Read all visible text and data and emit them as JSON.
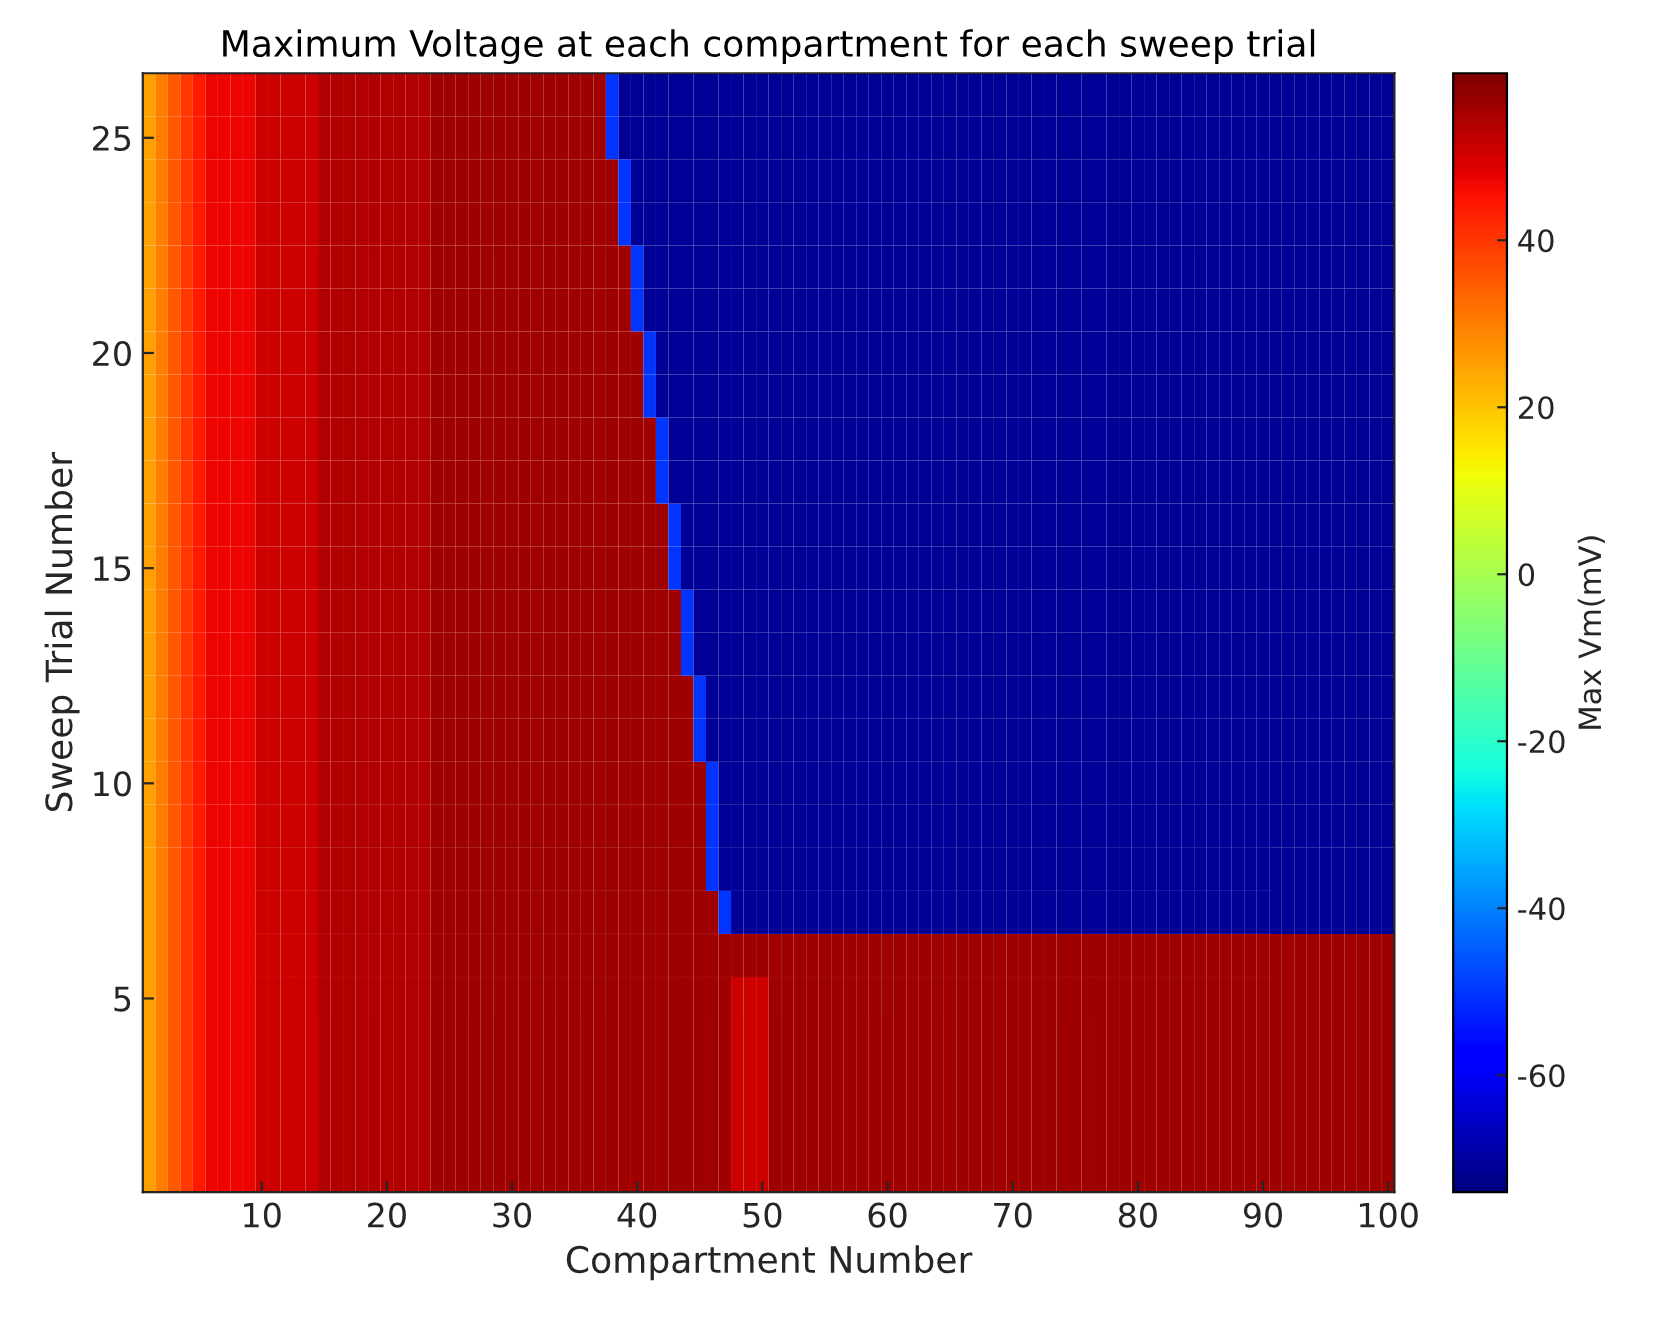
{
  "chart_data": {
    "type": "heatmap",
    "title": "Maximum Voltage at each compartment for each sweep trial",
    "xlabel": "Compartment Number",
    "ylabel": "Sweep Trial Number",
    "clabel": "Max Vm(mV)",
    "categories": [
      null,
      null,
      null,
      null,
      null,
      null,
      null,
      null,
      null,
      "10",
      null,
      null,
      null,
      null,
      null,
      null,
      null,
      null,
      null,
      "20",
      null,
      null,
      null,
      null,
      null,
      null,
      null,
      null,
      null,
      "30",
      null,
      null,
      null,
      null,
      null,
      null,
      null,
      null,
      null,
      "40",
      null,
      null,
      null,
      null,
      null,
      null,
      null,
      null,
      null,
      "50",
      null,
      null,
      null,
      null,
      null,
      null,
      null,
      null,
      null,
      "60",
      null,
      null,
      null,
      null,
      null,
      null,
      null,
      null,
      null,
      "70",
      null,
      null,
      null,
      null,
      null,
      null,
      null,
      null,
      null,
      "80",
      null,
      null,
      null,
      null,
      null,
      null,
      null,
      null,
      null,
      "90",
      null,
      null,
      null,
      null,
      null,
      null,
      null,
      null,
      null,
      "100"
    ],
    "y_categories": [
      null,
      "25",
      null,
      null,
      null,
      null,
      "20",
      null,
      null,
      null,
      null,
      "15",
      null,
      null,
      null,
      null,
      "10",
      null,
      null,
      null,
      null,
      "5",
      null,
      null,
      null,
      null
    ],
    "clim": [
      -74,
      60
    ],
    "cticks": [
      -60,
      -40,
      -20,
      0,
      20,
      40
    ],
    "grid": false,
    "cells": [
      [
        25,
        30,
        35,
        40,
        44,
        47,
        47,
        47,
        47,
        51,
        51,
        51,
        51,
        51,
        54,
        54,
        54,
        54,
        54,
        54,
        54,
        54,
        54,
        56,
        56,
        56,
        56,
        56,
        56,
        56,
        56,
        56,
        56,
        56,
        56,
        56,
        56,
        -50,
        -71,
        -71,
        -71,
        -71,
        -71,
        -71,
        -71,
        -71,
        -71,
        -71,
        -71,
        -71,
        -71,
        -71,
        -71,
        -71,
        -71,
        -71,
        -71,
        -71,
        -71,
        -71,
        -71,
        -71,
        -71,
        -71,
        -71,
        -71,
        -71,
        -71,
        -71,
        -71,
        -71,
        -71,
        -71,
        -71,
        -71,
        -71,
        -71,
        -71,
        -71,
        -71,
        -71,
        -71,
        -71,
        -71,
        -71,
        -71,
        -71,
        -71,
        -71,
        -71,
        -71,
        -71,
        -71,
        -71,
        -71,
        -71,
        -71,
        -71,
        -71,
        -71
      ],
      [
        25,
        30,
        35,
        40,
        44,
        47,
        47,
        47,
        47,
        51,
        51,
        51,
        51,
        51,
        54,
        54,
        54,
        54,
        54,
        54,
        54,
        54,
        54,
        56,
        56,
        56,
        56,
        56,
        56,
        56,
        56,
        56,
        56,
        56,
        56,
        56,
        56,
        -50,
        -71,
        -71,
        -71,
        -71,
        -71,
        -71,
        -71,
        -71,
        -71,
        -71,
        -71,
        -71,
        -71,
        -71,
        -71,
        -71,
        -71,
        -71,
        -71,
        -71,
        -71,
        -71,
        -71,
        -71,
        -71,
        -71,
        -71,
        -71,
        -71,
        -71,
        -71,
        -71,
        -71,
        -71,
        -71,
        -71,
        -71,
        -71,
        -71,
        -71,
        -71,
        -71,
        -71,
        -71,
        -71,
        -71,
        -71,
        -71,
        -71,
        -71,
        -71,
        -71,
        -71,
        -71,
        -71,
        -71,
        -71,
        -71,
        -71,
        -71,
        -71,
        -71
      ],
      [
        25,
        30,
        35,
        40,
        44,
        47,
        47,
        47,
        47,
        51,
        51,
        51,
        51,
        51,
        54,
        54,
        54,
        54,
        54,
        54,
        54,
        54,
        54,
        56,
        56,
        56,
        56,
        56,
        56,
        56,
        56,
        56,
        56,
        56,
        56,
        56,
        56,
        56,
        -50,
        -71,
        -71,
        -71,
        -71,
        -71,
        -71,
        -71,
        -71,
        -71,
        -71,
        -71,
        -71,
        -71,
        -71,
        -71,
        -71,
        -71,
        -71,
        -71,
        -71,
        -71,
        -71,
        -71,
        -71,
        -71,
        -71,
        -71,
        -71,
        -71,
        -71,
        -71,
        -71,
        -71,
        -71,
        -71,
        -71,
        -71,
        -71,
        -71,
        -71,
        -71,
        -71,
        -71,
        -71,
        -71,
        -71,
        -71,
        -71,
        -71,
        -71,
        -71,
        -71,
        -71,
        -71,
        -71,
        -71,
        -71,
        -71,
        -71,
        -71,
        -71
      ],
      [
        25,
        30,
        35,
        40,
        44,
        47,
        47,
        47,
        47,
        51,
        51,
        51,
        51,
        51,
        54,
        54,
        54,
        54,
        54,
        54,
        54,
        54,
        54,
        56,
        56,
        56,
        56,
        56,
        56,
        56,
        56,
        56,
        56,
        56,
        56,
        56,
        56,
        56,
        -50,
        -71,
        -71,
        -71,
        -71,
        -71,
        -71,
        -71,
        -71,
        -71,
        -71,
        -71,
        -71,
        -71,
        -71,
        -71,
        -71,
        -71,
        -71,
        -71,
        -71,
        -71,
        -71,
        -71,
        -71,
        -71,
        -71,
        -71,
        -71,
        -71,
        -71,
        -71,
        -71,
        -71,
        -71,
        -71,
        -71,
        -71,
        -71,
        -71,
        -71,
        -71,
        -71,
        -71,
        -71,
        -71,
        -71,
        -71,
        -71,
        -71,
        -71,
        -71,
        -71,
        -71,
        -71,
        -71,
        -71,
        -71,
        -71,
        -71,
        -71,
        -71
      ],
      [
        25,
        30,
        35,
        40,
        44,
        47,
        47,
        47,
        47,
        51,
        51,
        51,
        51,
        51,
        54,
        54,
        54,
        54,
        54,
        54,
        54,
        54,
        54,
        56,
        56,
        56,
        56,
        56,
        56,
        56,
        56,
        56,
        56,
        56,
        56,
        56,
        56,
        56,
        56,
        -50,
        -71,
        -71,
        -71,
        -71,
        -71,
        -71,
        -71,
        -71,
        -71,
        -71,
        -71,
        -71,
        -71,
        -71,
        -71,
        -71,
        -71,
        -71,
        -71,
        -71,
        -71,
        -71,
        -71,
        -71,
        -71,
        -71,
        -71,
        -71,
        -71,
        -71,
        -71,
        -71,
        -71,
        -71,
        -71,
        -71,
        -71,
        -71,
        -71,
        -71,
        -71,
        -71,
        -71,
        -71,
        -71,
        -71,
        -71,
        -71,
        -71,
        -71,
        -71,
        -71,
        -71,
        -71,
        -71,
        -71,
        -71,
        -71,
        -71,
        -71
      ],
      [
        25,
        30,
        35,
        40,
        44,
        47,
        47,
        47,
        47,
        51,
        51,
        51,
        51,
        51,
        54,
        54,
        54,
        54,
        54,
        54,
        54,
        54,
        54,
        56,
        56,
        56,
        56,
        56,
        56,
        56,
        56,
        56,
        56,
        56,
        56,
        56,
        56,
        56,
        56,
        -50,
        -71,
        -71,
        -71,
        -71,
        -71,
        -71,
        -71,
        -71,
        -71,
        -71,
        -71,
        -71,
        -71,
        -71,
        -71,
        -71,
        -71,
        -71,
        -71,
        -71,
        -71,
        -71,
        -71,
        -71,
        -71,
        -71,
        -71,
        -71,
        -71,
        -71,
        -71,
        -71,
        -71,
        -71,
        -71,
        -71,
        -71,
        -71,
        -71,
        -71,
        -71,
        -71,
        -71,
        -71,
        -71,
        -71,
        -71,
        -71,
        -71,
        -71,
        -71,
        -71,
        -71,
        -71,
        -71,
        -71,
        -71,
        -71,
        -71,
        -71
      ],
      [
        25,
        30,
        35,
        40,
        44,
        47,
        47,
        47,
        47,
        51,
        51,
        51,
        51,
        51,
        54,
        54,
        54,
        54,
        54,
        54,
        54,
        54,
        54,
        56,
        56,
        56,
        56,
        56,
        56,
        56,
        56,
        56,
        56,
        56,
        56,
        56,
        56,
        56,
        56,
        56,
        -50,
        -71,
        -71,
        -71,
        -71,
        -71,
        -71,
        -71,
        -71,
        -71,
        -71,
        -71,
        -71,
        -71,
        -71,
        -71,
        -71,
        -71,
        -71,
        -71,
        -71,
        -71,
        -71,
        -71,
        -71,
        -71,
        -71,
        -71,
        -71,
        -71,
        -71,
        -71,
        -71,
        -71,
        -71,
        -71,
        -71,
        -71,
        -71,
        -71,
        -71,
        -71,
        -71,
        -71,
        -71,
        -71,
        -71,
        -71,
        -71,
        -71,
        -71,
        -71,
        -71,
        -71,
        -71,
        -71,
        -71,
        -71,
        -71,
        -71
      ],
      [
        25,
        30,
        35,
        40,
        44,
        47,
        47,
        47,
        47,
        51,
        51,
        51,
        51,
        51,
        54,
        54,
        54,
        54,
        54,
        54,
        54,
        54,
        54,
        56,
        56,
        56,
        56,
        56,
        56,
        56,
        56,
        56,
        56,
        56,
        56,
        56,
        56,
        56,
        56,
        56,
        -50,
        -71,
        -71,
        -71,
        -71,
        -71,
        -71,
        -71,
        -71,
        -71,
        -71,
        -71,
        -71,
        -71,
        -71,
        -71,
        -71,
        -71,
        -71,
        -71,
        -71,
        -71,
        -71,
        -71,
        -71,
        -71,
        -71,
        -71,
        -71,
        -71,
        -71,
        -71,
        -71,
        -71,
        -71,
        -71,
        -71,
        -71,
        -71,
        -71,
        -71,
        -71,
        -71,
        -71,
        -71,
        -71,
        -71,
        -71,
        -71,
        -71,
        -71,
        -71,
        -71,
        -71,
        -71,
        -71,
        -71,
        -71,
        -71,
        -71
      ],
      [
        25,
        30,
        35,
        40,
        44,
        47,
        47,
        47,
        47,
        51,
        51,
        51,
        51,
        51,
        54,
        54,
        54,
        54,
        54,
        54,
        54,
        54,
        54,
        56,
        56,
        56,
        56,
        56,
        56,
        56,
        56,
        56,
        56,
        56,
        56,
        56,
        56,
        56,
        56,
        56,
        56,
        -50,
        -71,
        -71,
        -71,
        -71,
        -71,
        -71,
        -71,
        -71,
        -71,
        -71,
        -71,
        -71,
        -71,
        -71,
        -71,
        -71,
        -71,
        -71,
        -71,
        -71,
        -71,
        -71,
        -71,
        -71,
        -71,
        -71,
        -71,
        -71,
        -71,
        -71,
        -71,
        -71,
        -71,
        -71,
        -71,
        -71,
        -71,
        -71,
        -71,
        -71,
        -71,
        -71,
        -71,
        -71,
        -71,
        -71,
        -71,
        -71,
        -71,
        -71,
        -71,
        -71,
        -71,
        -71,
        -71,
        -71,
        -71,
        -71
      ],
      [
        25,
        30,
        35,
        40,
        44,
        47,
        47,
        47,
        47,
        51,
        51,
        51,
        51,
        51,
        54,
        54,
        54,
        54,
        54,
        54,
        54,
        54,
        54,
        56,
        56,
        56,
        56,
        56,
        56,
        56,
        56,
        56,
        56,
        56,
        56,
        56,
        56,
        56,
        56,
        56,
        56,
        -50,
        -71,
        -71,
        -71,
        -71,
        -71,
        -71,
        -71,
        -71,
        -71,
        -71,
        -71,
        -71,
        -71,
        -71,
        -71,
        -71,
        -71,
        -71,
        -71,
        -71,
        -71,
        -71,
        -71,
        -71,
        -71,
        -71,
        -71,
        -71,
        -71,
        -71,
        -71,
        -71,
        -71,
        -71,
        -71,
        -71,
        -71,
        -71,
        -71,
        -71,
        -71,
        -71,
        -71,
        -71,
        -71,
        -71,
        -71,
        -71,
        -71,
        -71,
        -71,
        -71,
        -71,
        -71,
        -71,
        -71,
        -71,
        -71
      ],
      [
        25,
        30,
        35,
        40,
        44,
        47,
        47,
        47,
        47,
        51,
        51,
        51,
        51,
        51,
        54,
        54,
        54,
        54,
        54,
        54,
        54,
        54,
        54,
        56,
        56,
        56,
        56,
        56,
        56,
        56,
        56,
        56,
        56,
        56,
        56,
        56,
        56,
        56,
        56,
        56,
        56,
        56,
        -50,
        -71,
        -71,
        -71,
        -71,
        -71,
        -71,
        -71,
        -71,
        -71,
        -71,
        -71,
        -71,
        -71,
        -71,
        -71,
        -71,
        -71,
        -71,
        -71,
        -71,
        -71,
        -71,
        -71,
        -71,
        -71,
        -71,
        -71,
        -71,
        -71,
        -71,
        -71,
        -71,
        -71,
        -71,
        -71,
        -71,
        -71,
        -71,
        -71,
        -71,
        -71,
        -71,
        -71,
        -71,
        -71,
        -71,
        -71,
        -71,
        -71,
        -71,
        -71,
        -71,
        -71,
        -71,
        -71,
        -71,
        -71
      ],
      [
        25,
        30,
        35,
        40,
        44,
        47,
        47,
        47,
        47,
        51,
        51,
        51,
        51,
        51,
        54,
        54,
        54,
        54,
        54,
        54,
        54,
        54,
        54,
        56,
        56,
        56,
        56,
        56,
        56,
        56,
        56,
        56,
        56,
        56,
        56,
        56,
        56,
        56,
        56,
        56,
        56,
        56,
        -50,
        -71,
        -71,
        -71,
        -71,
        -71,
        -71,
        -71,
        -71,
        -71,
        -71,
        -71,
        -71,
        -71,
        -71,
        -71,
        -71,
        -71,
        -71,
        -71,
        -71,
        -71,
        -71,
        -71,
        -71,
        -71,
        -71,
        -71,
        -71,
        -71,
        -71,
        -71,
        -71,
        -71,
        -71,
        -71,
        -71,
        -71,
        -71,
        -71,
        -71,
        -71,
        -71,
        -71,
        -71,
        -71,
        -71,
        -71,
        -71,
        -71,
        -71,
        -71,
        -71,
        -71,
        -71,
        -71,
        -71,
        -71
      ],
      [
        25,
        30,
        35,
        40,
        44,
        47,
        47,
        47,
        47,
        51,
        51,
        51,
        51,
        51,
        54,
        54,
        54,
        54,
        54,
        54,
        54,
        54,
        54,
        56,
        56,
        56,
        56,
        56,
        56,
        56,
        56,
        56,
        56,
        56,
        56,
        56,
        56,
        56,
        56,
        56,
        56,
        56,
        56,
        -50,
        -71,
        -71,
        -71,
        -71,
        -71,
        -71,
        -71,
        -71,
        -71,
        -71,
        -71,
        -71,
        -71,
        -71,
        -71,
        -71,
        -71,
        -71,
        -71,
        -71,
        -71,
        -71,
        -71,
        -71,
        -71,
        -71,
        -71,
        -71,
        -71,
        -71,
        -71,
        -71,
        -71,
        -71,
        -71,
        -71,
        -71,
        -71,
        -71,
        -71,
        -71,
        -71,
        -71,
        -71,
        -71,
        -71,
        -71,
        -71,
        -71,
        -71,
        -71,
        -71,
        -71,
        -71,
        -71,
        -71
      ],
      [
        25,
        30,
        35,
        40,
        44,
        47,
        47,
        47,
        47,
        51,
        51,
        51,
        51,
        51,
        54,
        54,
        54,
        54,
        54,
        54,
        54,
        54,
        54,
        56,
        56,
        56,
        56,
        56,
        56,
        56,
        56,
        56,
        56,
        56,
        56,
        56,
        56,
        56,
        56,
        56,
        56,
        56,
        56,
        -50,
        -71,
        -71,
        -71,
        -71,
        -71,
        -71,
        -71,
        -71,
        -71,
        -71,
        -71,
        -71,
        -71,
        -71,
        -71,
        -71,
        -71,
        -71,
        -71,
        -71,
        -71,
        -71,
        -71,
        -71,
        -71,
        -71,
        -71,
        -71,
        -71,
        -71,
        -71,
        -71,
        -71,
        -71,
        -71,
        -71,
        -71,
        -71,
        -71,
        -71,
        -71,
        -71,
        -71,
        -71,
        -71,
        -71,
        -71,
        -71,
        -71,
        -71,
        -71,
        -71,
        -71,
        -71,
        -71,
        -71
      ],
      [
        25,
        30,
        35,
        40,
        44,
        47,
        47,
        47,
        47,
        51,
        51,
        51,
        51,
        51,
        54,
        54,
        54,
        54,
        54,
        54,
        54,
        54,
        54,
        56,
        56,
        56,
        56,
        56,
        56,
        56,
        56,
        56,
        56,
        56,
        56,
        56,
        56,
        56,
        56,
        56,
        56,
        56,
        56,
        56,
        -50,
        -71,
        -71,
        -71,
        -71,
        -71,
        -71,
        -71,
        -71,
        -71,
        -71,
        -71,
        -71,
        -71,
        -71,
        -71,
        -71,
        -71,
        -71,
        -71,
        -71,
        -71,
        -71,
        -71,
        -71,
        -71,
        -71,
        -71,
        -71,
        -71,
        -71,
        -71,
        -71,
        -71,
        -71,
        -71,
        -71,
        -71,
        -71,
        -71,
        -71,
        -71,
        -71,
        -71,
        -71,
        -71,
        -71,
        -71,
        -71,
        -71,
        -71,
        -71,
        -71,
        -71,
        -71,
        -71
      ],
      [
        25,
        30,
        35,
        40,
        44,
        47,
        47,
        47,
        47,
        51,
        51,
        51,
        51,
        51,
        54,
        54,
        54,
        54,
        54,
        54,
        54,
        54,
        54,
        56,
        56,
        56,
        56,
        56,
        56,
        56,
        56,
        56,
        56,
        56,
        56,
        56,
        56,
        56,
        56,
        56,
        56,
        56,
        56,
        56,
        -50,
        -71,
        -71,
        -71,
        -71,
        -71,
        -71,
        -71,
        -71,
        -71,
        -71,
        -71,
        -71,
        -71,
        -71,
        -71,
        -71,
        -71,
        -71,
        -71,
        -71,
        -71,
        -71,
        -71,
        -71,
        -71,
        -71,
        -71,
        -71,
        -71,
        -71,
        -71,
        -71,
        -71,
        -71,
        -71,
        -71,
        -71,
        -71,
        -71,
        -71,
        -71,
        -71,
        -71,
        -71,
        -71,
        -71,
        -71,
        -71,
        -71,
        -71,
        -71,
        -71,
        -71,
        -71,
        -71
      ],
      [
        25,
        30,
        35,
        40,
        44,
        47,
        47,
        47,
        47,
        51,
        51,
        51,
        51,
        51,
        54,
        54,
        54,
        54,
        54,
        54,
        54,
        54,
        54,
        56,
        56,
        56,
        56,
        56,
        56,
        56,
        56,
        56,
        56,
        56,
        56,
        56,
        56,
        56,
        56,
        56,
        56,
        56,
        56,
        56,
        56,
        -50,
        -71,
        -71,
        -71,
        -71,
        -71,
        -71,
        -71,
        -71,
        -71,
        -71,
        -71,
        -71,
        -71,
        -71,
        -71,
        -71,
        -71,
        -71,
        -71,
        -71,
        -71,
        -71,
        -71,
        -71,
        -71,
        -71,
        -71,
        -71,
        -71,
        -71,
        -71,
        -71,
        -71,
        -71,
        -71,
        -71,
        -71,
        -71,
        -71,
        -71,
        -71,
        -71,
        -71,
        -71,
        -71,
        -71,
        -71,
        -71,
        -71,
        -71,
        -71,
        -71,
        -71,
        -71
      ],
      [
        25,
        30,
        35,
        40,
        44,
        47,
        47,
        47,
        47,
        51,
        51,
        51,
        51,
        51,
        54,
        54,
        54,
        54,
        54,
        54,
        54,
        54,
        54,
        56,
        56,
        56,
        56,
        56,
        56,
        56,
        56,
        56,
        56,
        56,
        56,
        56,
        56,
        56,
        56,
        56,
        56,
        56,
        56,
        56,
        56,
        -50,
        -71,
        -71,
        -71,
        -71,
        -71,
        -71,
        -71,
        -71,
        -71,
        -71,
        -71,
        -71,
        -71,
        -71,
        -71,
        -71,
        -71,
        -71,
        -71,
        -71,
        -71,
        -71,
        -71,
        -71,
        -71,
        -71,
        -71,
        -71,
        -71,
        -71,
        -71,
        -71,
        -71,
        -71,
        -71,
        -71,
        -71,
        -71,
        -71,
        -71,
        -71,
        -71,
        -71,
        -71,
        -71,
        -71,
        -71,
        -71,
        -71,
        -71,
        -71,
        -71,
        -71,
        -71
      ],
      [
        25,
        30,
        35,
        40,
        44,
        47,
        47,
        47,
        47,
        51,
        51,
        51,
        51,
        51,
        54,
        54,
        54,
        54,
        54,
        54,
        54,
        54,
        54,
        56,
        56,
        56,
        56,
        56,
        56,
        56,
        56,
        56,
        56,
        56,
        56,
        56,
        56,
        56,
        56,
        56,
        56,
        56,
        56,
        56,
        56,
        -50,
        -71,
        -71,
        -71,
        -71,
        -71,
        -71,
        -71,
        -71,
        -71,
        -71,
        -71,
        -71,
        -71,
        -71,
        -71,
        -71,
        -71,
        -71,
        -71,
        -71,
        -71,
        -71,
        -71,
        -71,
        -71,
        -71,
        -71,
        -71,
        -71,
        -71,
        -71,
        -71,
        -71,
        -71,
        -71,
        -71,
        -71,
        -71,
        -71,
        -71,
        -71,
        -71,
        -71,
        -71,
        -71,
        -71,
        -71,
        -71,
        -71,
        -71,
        -71,
        -71,
        -71,
        -71
      ],
      [
        25,
        30,
        35,
        40,
        44,
        47,
        47,
        47,
        47,
        51,
        51,
        51,
        51,
        51,
        54,
        54,
        54,
        54,
        54,
        54,
        54,
        54,
        54,
        56,
        56,
        56,
        56,
        56,
        56,
        56,
        56,
        56,
        56,
        56,
        56,
        56,
        56,
        56,
        56,
        56,
        56,
        56,
        56,
        56,
        56,
        56,
        -50,
        -71,
        -71,
        -71,
        -71,
        -71,
        -71,
        -71,
        -71,
        -71,
        -71,
        -71,
        -71,
        -71,
        -71,
        -71,
        -71,
        -71,
        -71,
        -71,
        -71,
        -71,
        -71,
        -71,
        -71,
        -71,
        -71,
        -71,
        -71,
        -71,
        -71,
        -71,
        -71,
        -71,
        -71,
        -71,
        -71,
        -71,
        -71,
        -71,
        -71,
        -71,
        -71,
        -71,
        -71,
        -71,
        -71,
        -71,
        -71,
        -71,
        -71,
        -71,
        -71,
        -71
      ],
      [
        25,
        30,
        35,
        40,
        44,
        47,
        47,
        47,
        47,
        51,
        51,
        51,
        51,
        51,
        54,
        54,
        54,
        54,
        54,
        54,
        54,
        54,
        54,
        56,
        56,
        56,
        56,
        56,
        56,
        56,
        56,
        56,
        56,
        56,
        56,
        56,
        56,
        56,
        56,
        56,
        56,
        56,
        56,
        56,
        56,
        56,
        56,
        56,
        56,
        56,
        56,
        56,
        56,
        56,
        56,
        56,
        56,
        56,
        56,
        56,
        56,
        56,
        56,
        56,
        56,
        56,
        56,
        56,
        56,
        56,
        56,
        56,
        56,
        56,
        56,
        56,
        56,
        56,
        56,
        56,
        56,
        56,
        56,
        56,
        56,
        56,
        56,
        56,
        56,
        56,
        56,
        56,
        56,
        56,
        56,
        56,
        56,
        56,
        56,
        56
      ],
      [
        25,
        30,
        35,
        40,
        44,
        47,
        47,
        47,
        47,
        51,
        51,
        51,
        51,
        51,
        54,
        54,
        54,
        54,
        54,
        54,
        54,
        54,
        54,
        56,
        56,
        56,
        56,
        56,
        56,
        56,
        56,
        56,
        56,
        56,
        56,
        56,
        56,
        56,
        56,
        56,
        56,
        56,
        56,
        56,
        56,
        56,
        56,
        51,
        51,
        51,
        56,
        56,
        56,
        56,
        56,
        56,
        56,
        56,
        56,
        56,
        56,
        56,
        56,
        56,
        56,
        56,
        56,
        56,
        56,
        56,
        56,
        56,
        56,
        56,
        56,
        56,
        56,
        56,
        56,
        56,
        56,
        56,
        56,
        56,
        56,
        56,
        56,
        56,
        56,
        56,
        56,
        56,
        56,
        56,
        56,
        56,
        56,
        56,
        56,
        56
      ],
      [
        25,
        30,
        35,
        40,
        44,
        47,
        47,
        47,
        47,
        51,
        51,
        51,
        51,
        51,
        54,
        54,
        54,
        54,
        54,
        54,
        54,
        54,
        54,
        56,
        56,
        56,
        56,
        56,
        56,
        56,
        56,
        56,
        56,
        56,
        56,
        56,
        56,
        56,
        56,
        56,
        56,
        56,
        56,
        56,
        56,
        56,
        56,
        51,
        51,
        51,
        56,
        56,
        56,
        56,
        56,
        56,
        56,
        56,
        56,
        56,
        56,
        56,
        56,
        56,
        56,
        56,
        56,
        56,
        56,
        56,
        56,
        56,
        56,
        56,
        56,
        56,
        56,
        56,
        56,
        56,
        56,
        56,
        56,
        56,
        56,
        56,
        56,
        56,
        56,
        56,
        56,
        56,
        56,
        56,
        56,
        56,
        56,
        56,
        56,
        56
      ],
      [
        25,
        30,
        35,
        40,
        44,
        47,
        47,
        47,
        47,
        51,
        51,
        51,
        51,
        51,
        54,
        54,
        54,
        54,
        54,
        54,
        54,
        54,
        54,
        56,
        56,
        56,
        56,
        56,
        56,
        56,
        56,
        56,
        56,
        56,
        56,
        56,
        56,
        56,
        56,
        56,
        56,
        56,
        56,
        56,
        56,
        56,
        56,
        51,
        51,
        51,
        56,
        56,
        56,
        56,
        56,
        56,
        56,
        56,
        56,
        56,
        56,
        56,
        56,
        56,
        56,
        56,
        56,
        56,
        56,
        56,
        56,
        56,
        56,
        56,
        56,
        56,
        56,
        56,
        56,
        56,
        56,
        56,
        56,
        56,
        56,
        56,
        56,
        56,
        56,
        56,
        56,
        56,
        56,
        56,
        56,
        56,
        56,
        56,
        56,
        56
      ],
      [
        25,
        30,
        35,
        40,
        44,
        47,
        47,
        47,
        47,
        51,
        51,
        51,
        51,
        51,
        54,
        54,
        54,
        54,
        54,
        54,
        54,
        54,
        54,
        56,
        56,
        56,
        56,
        56,
        56,
        56,
        56,
        56,
        56,
        56,
        56,
        56,
        56,
        56,
        56,
        56,
        56,
        56,
        56,
        56,
        56,
        56,
        56,
        51,
        51,
        51,
        56,
        56,
        56,
        56,
        56,
        56,
        56,
        56,
        56,
        56,
        56,
        56,
        56,
        56,
        56,
        56,
        56,
        56,
        56,
        56,
        56,
        56,
        56,
        56,
        56,
        56,
        56,
        56,
        56,
        56,
        56,
        56,
        56,
        56,
        56,
        56,
        56,
        56,
        56,
        56,
        56,
        56,
        56,
        56,
        56,
        56,
        56,
        56,
        56,
        56
      ],
      [
        25,
        30,
        35,
        40,
        44,
        47,
        47,
        47,
        47,
        51,
        51,
        51,
        51,
        51,
        54,
        54,
        54,
        54,
        54,
        54,
        54,
        54,
        54,
        56,
        56,
        56,
        56,
        56,
        56,
        56,
        56,
        56,
        56,
        56,
        56,
        56,
        56,
        56,
        56,
        56,
        56,
        56,
        56,
        56,
        56,
        56,
        56,
        51,
        51,
        51,
        56,
        56,
        56,
        56,
        56,
        56,
        56,
        56,
        56,
        56,
        56,
        56,
        56,
        56,
        56,
        56,
        56,
        56,
        56,
        56,
        56,
        56,
        56,
        56,
        56,
        56,
        56,
        56,
        56,
        56,
        56,
        56,
        56,
        56,
        56,
        56,
        56,
        56,
        56,
        56,
        56,
        56,
        56,
        56,
        56,
        56,
        56,
        56,
        56,
        56
      ]
    ]
  }
}
